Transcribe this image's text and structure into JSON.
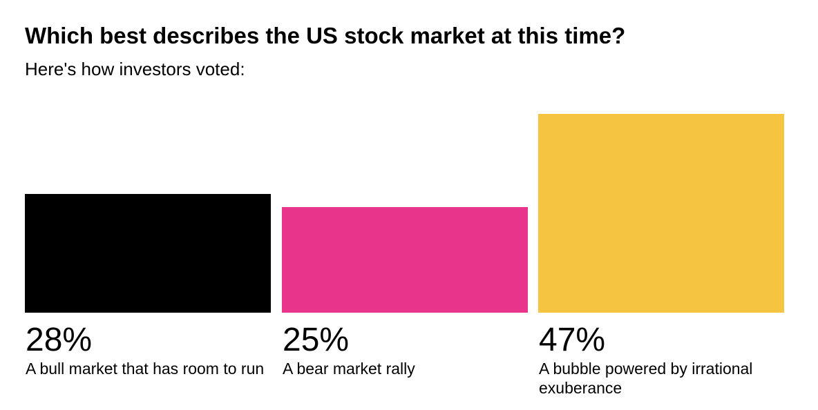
{
  "title": "Which best describes the US stock market at this time?",
  "subtitle": "Here's how investors voted:",
  "chart_data": {
    "type": "bar",
    "title": "Which best describes the US stock market at this time?",
    "subtitle": "Here's how investors voted:",
    "categories": [
      "A bull market that has room to run",
      "A bear market rally",
      "A bubble powered by irrational exuberance"
    ],
    "values": [
      28,
      25,
      47
    ],
    "value_labels": [
      "28%",
      "25%",
      "47%"
    ],
    "colors": [
      "#000000",
      "#E8358B",
      "#F5C542"
    ],
    "ylim": [
      0,
      55
    ],
    "grid": false,
    "legend": "none"
  }
}
